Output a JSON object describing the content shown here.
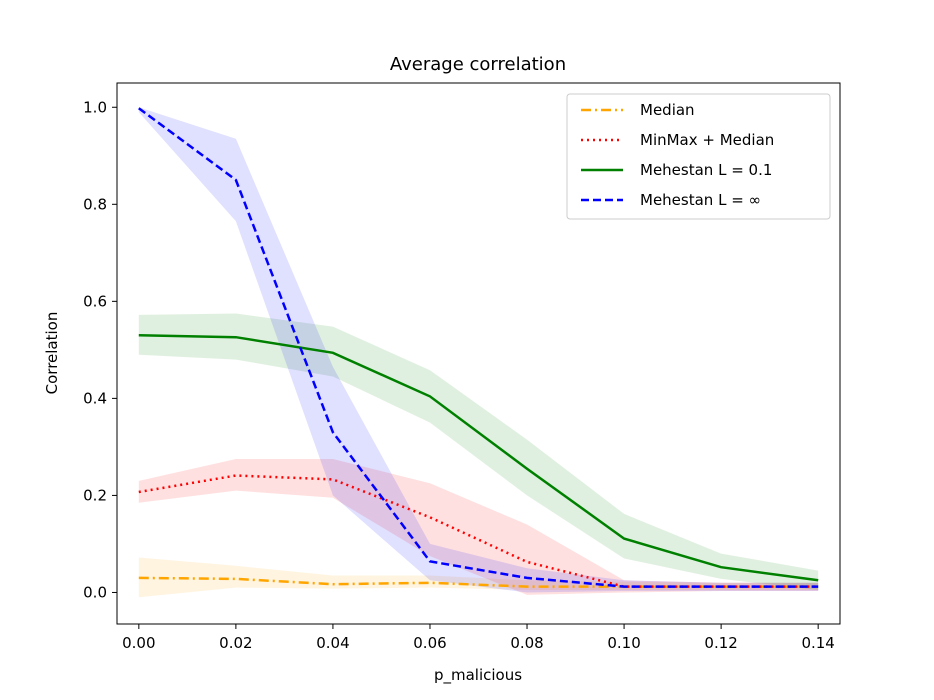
{
  "chart_data": {
    "type": "line",
    "title": "Average correlation",
    "xlabel": "p_malicious",
    "ylabel": "Correlation",
    "xlim": [
      -0.0045,
      0.1445
    ],
    "ylim": [
      -0.065,
      1.05
    ],
    "x": [
      0.0,
      0.02,
      0.04,
      0.06,
      0.08,
      0.1,
      0.12,
      0.14
    ],
    "xticks": [
      0.0,
      0.02,
      0.04,
      0.06,
      0.08,
      0.1,
      0.12,
      0.14
    ],
    "xtick_labels": [
      "0.00",
      "0.02",
      "0.04",
      "0.06",
      "0.08",
      "0.10",
      "0.12",
      "0.14"
    ],
    "yticks": [
      0.0,
      0.2,
      0.4,
      0.6,
      0.8,
      1.0
    ],
    "ytick_labels": [
      "0.0",
      "0.2",
      "0.4",
      "0.6",
      "0.8",
      "1.0"
    ],
    "legend_position": "top-right",
    "series": [
      {
        "name": "Median",
        "color": "#ffa500",
        "dash": "dashdot",
        "values": [
          0.03,
          0.028,
          0.017,
          0.02,
          0.012,
          0.012,
          0.012,
          0.012
        ],
        "lower": [
          -0.01,
          0.01,
          0.008,
          0.01,
          0.005,
          0.005,
          0.005,
          0.005
        ],
        "upper": [
          0.072,
          0.055,
          0.035,
          0.035,
          0.025,
          0.022,
          0.02,
          0.02
        ]
      },
      {
        "name": "MinMax + Median",
        "color": "#ff0000",
        "dash": "dotted",
        "values": [
          0.207,
          0.241,
          0.233,
          0.155,
          0.063,
          0.012,
          0.012,
          0.012
        ],
        "lower": [
          0.185,
          0.21,
          0.195,
          0.075,
          -0.005,
          0.0,
          0.003,
          0.003
        ],
        "upper": [
          0.23,
          0.275,
          0.275,
          0.225,
          0.14,
          0.025,
          0.02,
          0.02
        ]
      },
      {
        "name": "Mehestan  L = 0.1",
        "color": "#008000",
        "dash": "solid",
        "values": [
          0.53,
          0.526,
          0.494,
          0.404,
          0.255,
          0.111,
          0.052,
          0.025
        ],
        "lower": [
          0.49,
          0.48,
          0.445,
          0.35,
          0.2,
          0.07,
          0.028,
          0.005
        ],
        "upper": [
          0.572,
          0.575,
          0.548,
          0.458,
          0.315,
          0.162,
          0.08,
          0.045
        ]
      },
      {
        "name": "Mehestan  L = ∞",
        "color": "#0000ff",
        "dash": "dashed",
        "values": [
          0.998,
          0.85,
          0.33,
          0.064,
          0.03,
          0.012,
          0.012,
          0.012
        ],
        "lower": [
          0.99,
          0.765,
          0.2,
          0.025,
          0.0,
          0.003,
          0.003,
          0.003
        ],
        "upper": [
          1.0,
          0.935,
          0.465,
          0.1,
          0.05,
          0.025,
          0.02,
          0.02
        ]
      }
    ]
  }
}
